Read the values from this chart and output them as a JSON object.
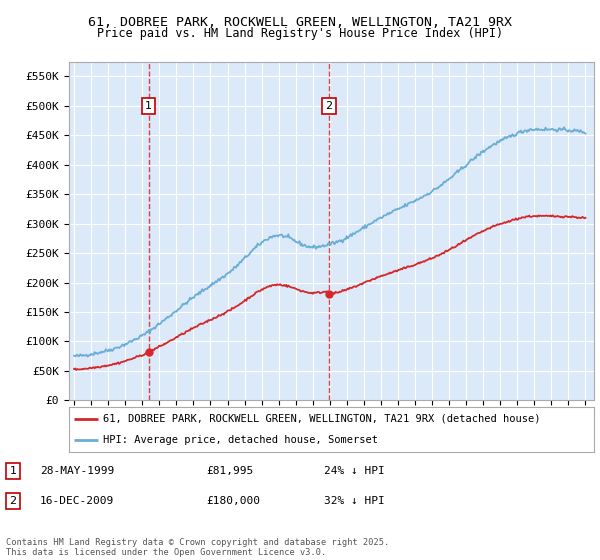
{
  "title1": "61, DOBREE PARK, ROCKWELL GREEN, WELLINGTON, TA21 9RX",
  "title2": "Price paid vs. HM Land Registry's House Price Index (HPI)",
  "ylabel_ticks": [
    "£0",
    "£50K",
    "£100K",
    "£150K",
    "£200K",
    "£250K",
    "£300K",
    "£350K",
    "£400K",
    "£450K",
    "£500K",
    "£550K"
  ],
  "ytick_vals": [
    0,
    50000,
    100000,
    150000,
    200000,
    250000,
    300000,
    350000,
    400000,
    450000,
    500000,
    550000
  ],
  "ylim": [
    0,
    575000
  ],
  "xlim_start": 1994.7,
  "xlim_end": 2025.5,
  "xticks": [
    1995,
    1996,
    1997,
    1998,
    1999,
    2000,
    2001,
    2002,
    2003,
    2004,
    2005,
    2006,
    2007,
    2008,
    2009,
    2010,
    2011,
    2012,
    2013,
    2014,
    2015,
    2016,
    2017,
    2018,
    2019,
    2020,
    2021,
    2022,
    2023,
    2024,
    2025
  ],
  "bg_color": "#dce9f8",
  "grid_color": "#ffffff",
  "hpi_color": "#6baed6",
  "price_color": "#d62728",
  "sale1_x": 1999.38,
  "sale1_price": 81995,
  "sale2_x": 2009.96,
  "sale2_price": 180000,
  "marker1_label": "1",
  "marker1_date": "28-MAY-1999",
  "marker1_price": "£81,995",
  "marker1_hpi": "24% ↓ HPI",
  "marker2_label": "2",
  "marker2_date": "16-DEC-2009",
  "marker2_price": "£180,000",
  "marker2_hpi": "32% ↓ HPI",
  "legend_line1": "61, DOBREE PARK, ROCKWELL GREEN, WELLINGTON, TA21 9RX (detached house)",
  "legend_line2": "HPI: Average price, detached house, Somerset",
  "footer": "Contains HM Land Registry data © Crown copyright and database right 2025.\nThis data is licensed under the Open Government Licence v3.0."
}
